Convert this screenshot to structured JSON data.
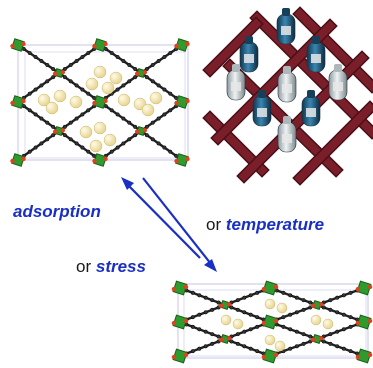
{
  "labels": {
    "adsorption": "adsorption",
    "or_1": "or",
    "temperature": "temperature",
    "or_2": "or",
    "stress": "stress"
  },
  "colors": {
    "keyword": "#1a2fc4",
    "metal_node": "#2e9b2e",
    "oxygen": "#e0401a",
    "linker": "#222222",
    "guest": "#f4e7a8",
    "rack_wood": "#7a1f2a",
    "bottle_blue": "#1f5f86",
    "bottle_clear": "#c9d3d6",
    "arrow": "#1a2fc4"
  },
  "icons": {
    "framework_open": "mof-open-framework-icon",
    "framework_narrow": "mof-narrow-pore-framework-icon",
    "wine_rack": "wine-rack-photo",
    "arrows": "reversible-arrow-icon"
  }
}
